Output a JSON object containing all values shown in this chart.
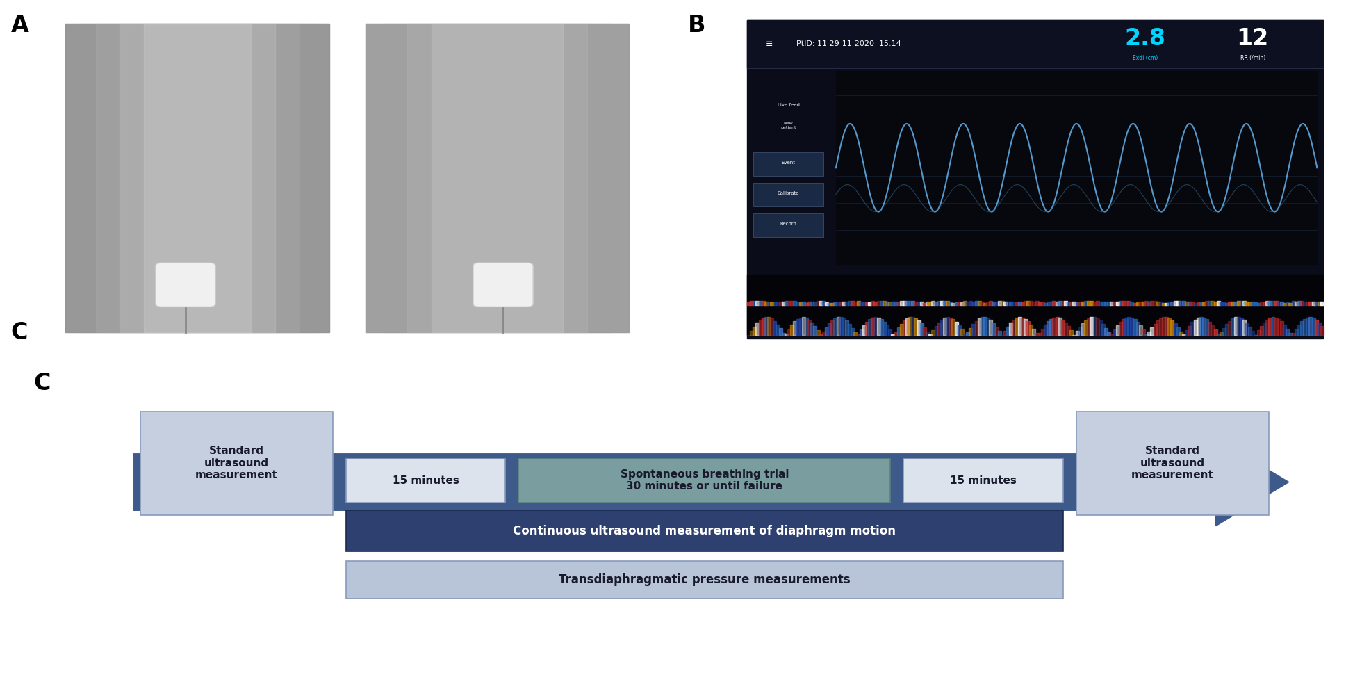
{
  "label_A": "A",
  "label_B": "B",
  "label_C": "C",
  "bg_color": "#ffffff",
  "arrow_color": "#3d5a8a",
  "box_standard_color": "#c5cfe0",
  "box_standard_border": "#8899bb",
  "box_standard_text_color": "#1a1a2e",
  "box_15min_color": "#dde3ec",
  "box_15min_border": "#8899bb",
  "box_15min_text_color": "#1a1a2e",
  "box_sbt_color": "#7a9e9f",
  "box_sbt_border": "#5a8080",
  "box_sbt_text_color": "#1a1a2e",
  "box_continuous_color": "#2e4070",
  "box_continuous_border": "#1a2a50",
  "box_continuous_text_color": "#ffffff",
  "box_transdia_color": "#b8c4d8",
  "box_transdia_border": "#8899bb",
  "box_transdia_text_color": "#1a1a2e",
  "standard_text": "Standard\nultrasound\nmeasurement",
  "min15_text": "15 minutes",
  "sbt_text": "Spontaneous breathing trial\n30 minutes or until failure",
  "continuous_text": "Continuous ultrasound measurement of diaphragm motion",
  "transdia_text": "Transdiaphragmatic pressure measurements",
  "monitor_bg": "#0a0c1a",
  "monitor_frame": "#d4b896",
  "monitor_header_bg": "#0d1020",
  "monitor_text_color": "#ffffff",
  "monitor_cyan": "#00d4ff",
  "monitor_button_color": "#1a2a44",
  "monitor_wave_color": "#4488cc",
  "monitor_header_text": "PtID: 11 29-11-2020  15.14",
  "monitor_live_text": "Live feed",
  "monitor_val1": "2.8",
  "monitor_val2": "12",
  "monitor_label1": "Exdi (cm)",
  "monitor_label2": "RR (/min)",
  "monitor_btn1": "New\npatient",
  "monitor_btn2": "Event",
  "monitor_btn3": "Calibrate",
  "monitor_btn4": "Record"
}
